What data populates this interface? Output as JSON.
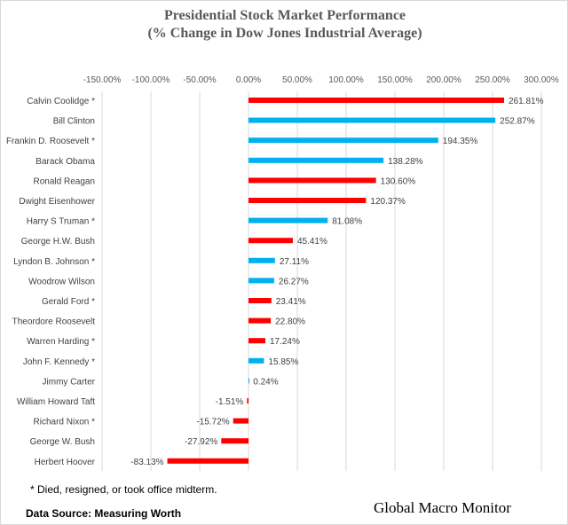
{
  "chart_data": {
    "type": "bar",
    "orientation": "horizontal",
    "title": "Presidential Stock Market Performance",
    "subtitle": "(% Change in Dow Jones Industrial Average)",
    "xlim": [
      -150,
      300
    ],
    "xticks": [
      -150,
      -100,
      -50,
      0,
      50,
      100,
      150,
      200,
      250,
      300
    ],
    "xtick_labels": [
      "-150.00%",
      "-100.00%",
      "-50.00%",
      "0.00%",
      "50.00%",
      "100.00%",
      "150.00%",
      "200.00%",
      "250.00%",
      "300.00%"
    ],
    "grid": true,
    "categories": [
      "Calvin Coolidge *",
      "Bill Clinton",
      "Frankin D. Roosevelt *",
      "Barack Obama",
      "Ronald Reagan",
      "Dwight Eisenhower",
      "Harry S Truman *",
      "George H.W. Bush",
      "Lyndon B. Johnson *",
      "Woodrow Wilson",
      "Gerald Ford *",
      "Theordore Roosevelt",
      "Warren Harding *",
      "John F. Kennedy *",
      "Jimmy Carter",
      "William Howard Taft",
      "Richard Nixon *",
      "George W. Bush",
      "Herbert Hoover"
    ],
    "values": [
      261.81,
      252.87,
      194.35,
      138.28,
      130.6,
      120.37,
      81.08,
      45.41,
      27.11,
      26.27,
      23.41,
      22.8,
      17.24,
      15.85,
      0.24,
      -1.51,
      -15.72,
      -27.92,
      -83.13
    ],
    "data_labels": [
      "261.81%",
      "252.87%",
      "194.35%",
      "138.28%",
      "130.60%",
      "120.37%",
      "81.08%",
      "45.41%",
      "27.11%",
      "26.27%",
      "23.41%",
      "22.80%",
      "17.24%",
      "15.85%",
      "0.24%",
      "-1.51%",
      "-15.72%",
      "-27.92%",
      "-83.13%"
    ],
    "party": [
      "R",
      "D",
      "D",
      "D",
      "R",
      "R",
      "D",
      "R",
      "D",
      "D",
      "R",
      "R",
      "R",
      "D",
      "D",
      "R",
      "R",
      "R",
      "R"
    ],
    "colors": {
      "R": "#ff0000",
      "D": "#00b0f0"
    }
  },
  "footnote": "* Died, resigned, or took office midterm.",
  "source": "Data Source:  Measuring Worth",
  "brand": "Global Macro Monitor"
}
